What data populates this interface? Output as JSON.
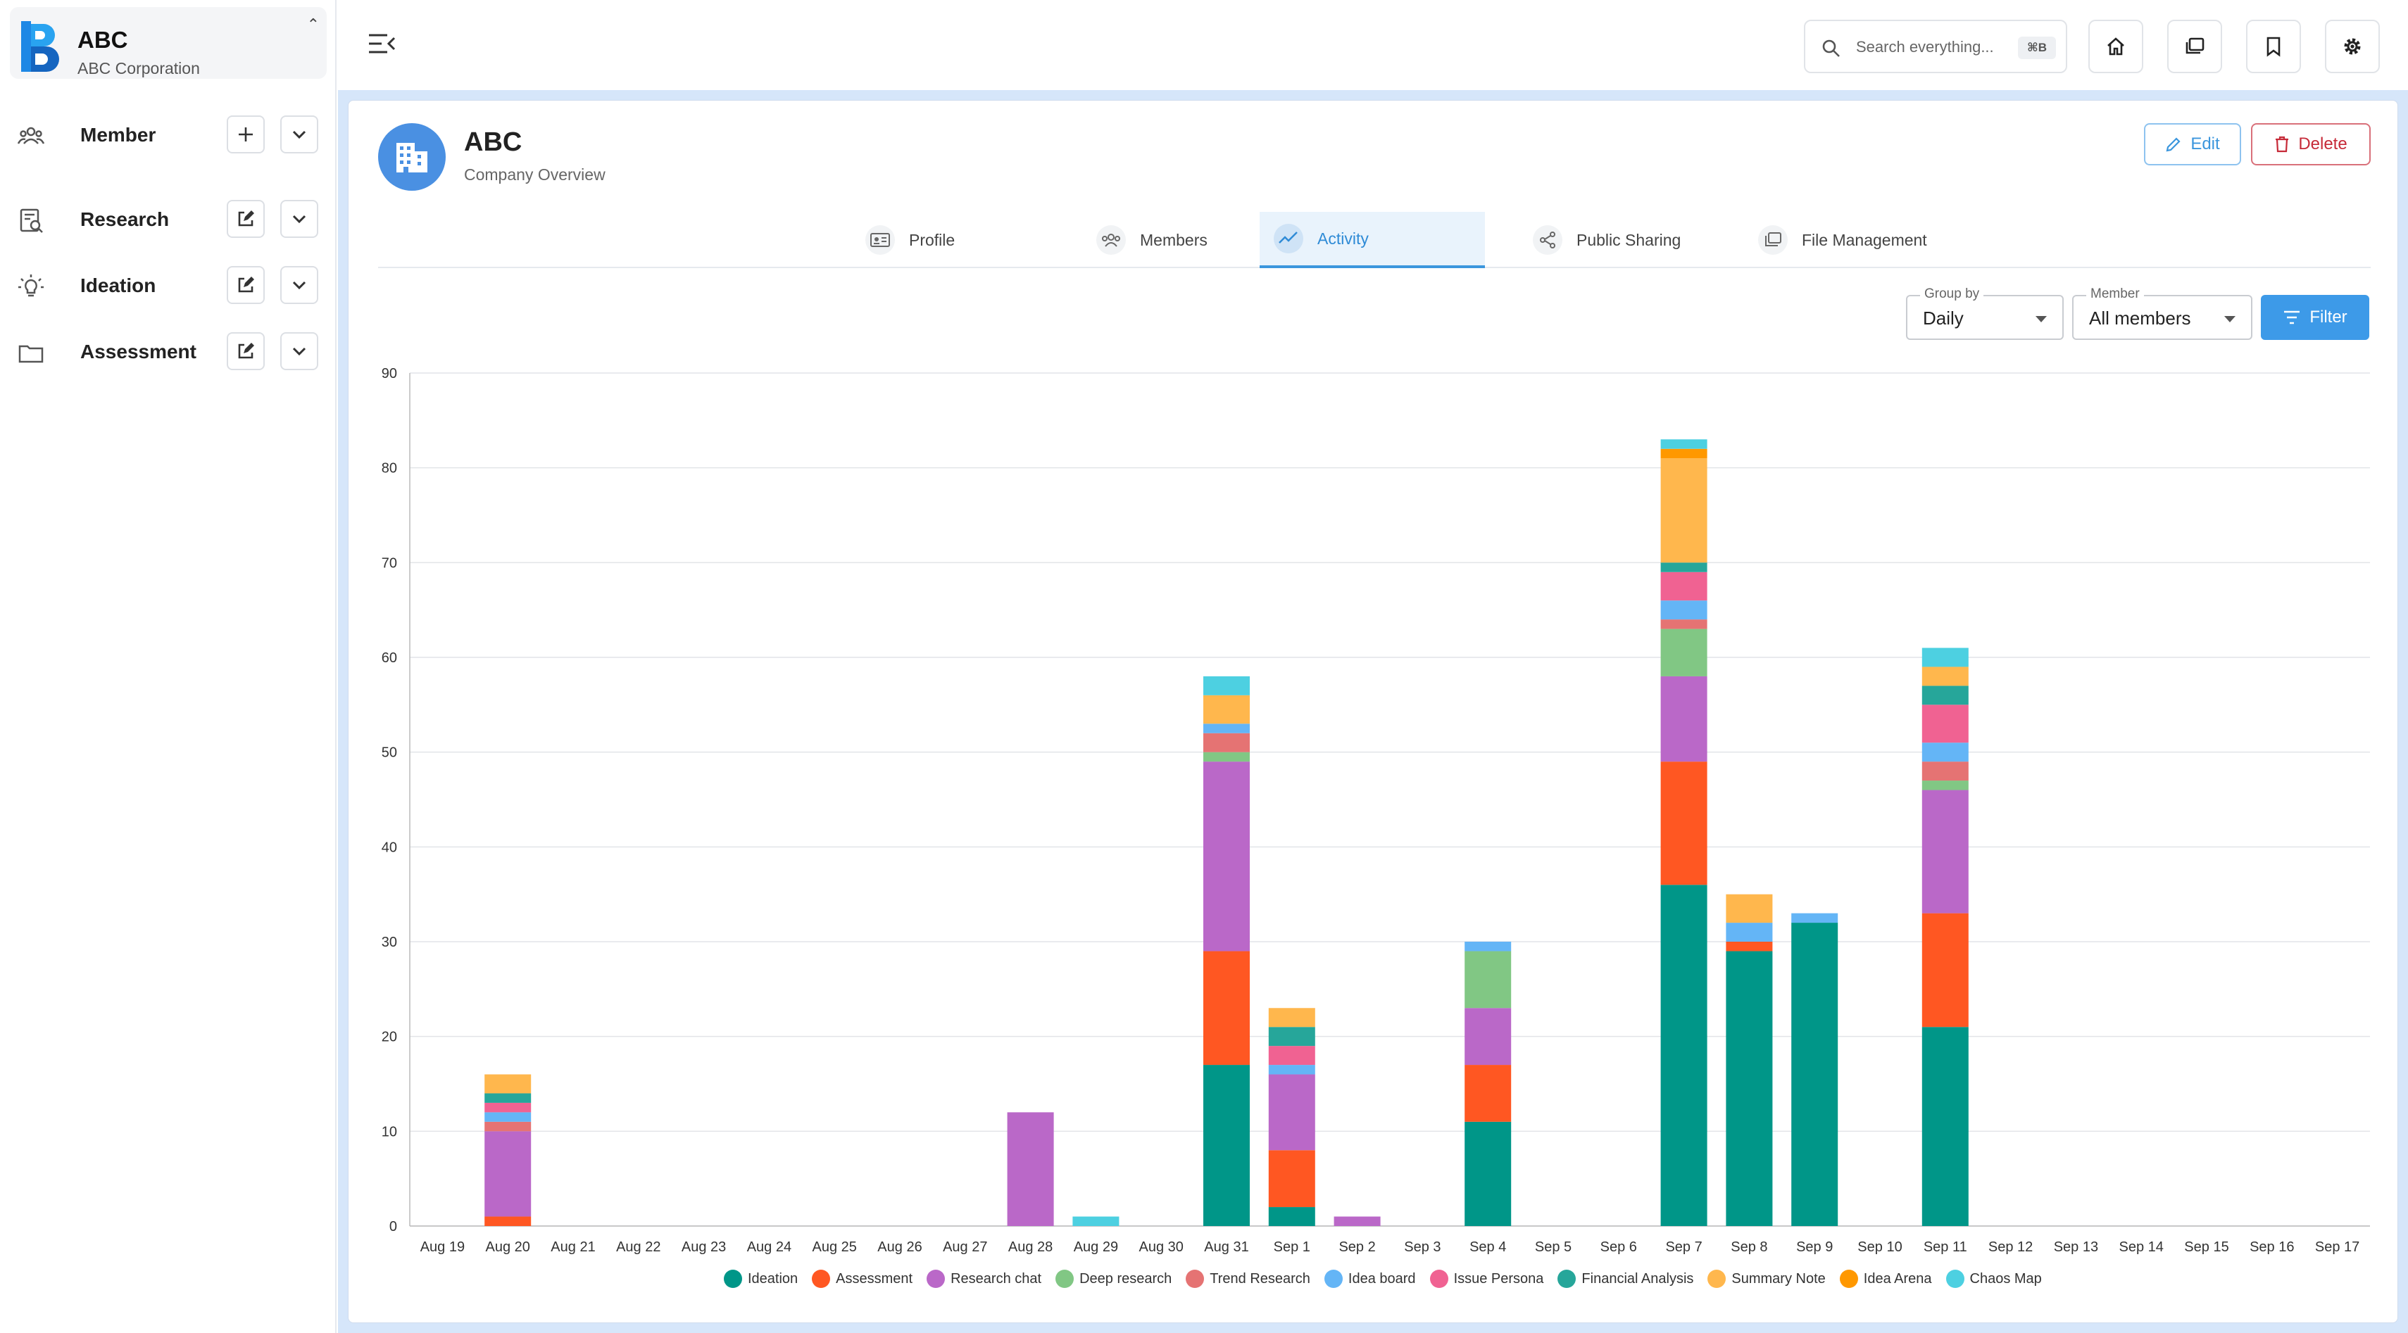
{
  "org": {
    "name": "ABC",
    "subtitle": "ABC Corporation"
  },
  "sidebar": {
    "items": [
      {
        "label": "Member",
        "icon": "people-icon"
      },
      {
        "label": "Research",
        "icon": "research-icon"
      },
      {
        "label": "Ideation",
        "icon": "lightbulb-icon"
      },
      {
        "label": "Assessment",
        "icon": "folder-icon"
      }
    ]
  },
  "search": {
    "placeholder": "Search everything...",
    "shortcut": "⌘B"
  },
  "company": {
    "name": "ABC",
    "subtitle": "Company Overview"
  },
  "actions": {
    "edit": "Edit",
    "delete": "Delete"
  },
  "tabs": [
    {
      "label": "Profile"
    },
    {
      "label": "Members"
    },
    {
      "label": "Activity",
      "active": true
    },
    {
      "label": "Public Sharing"
    },
    {
      "label": "File Management"
    }
  ],
  "filters": {
    "group_by": {
      "label": "Group by",
      "value": "Daily"
    },
    "member": {
      "label": "Member",
      "value": "All members"
    },
    "button": "Filter"
  },
  "colors": {
    "Ideation": "#009688",
    "Assessment": "#ff5722",
    "Research chat": "#ba68c8",
    "Deep research": "#81c784",
    "Trend Research": "#e57373",
    "Idea board": "#64b5f6",
    "Issue Persona": "#f06292",
    "Financial Analysis": "#26a69a",
    "Summary Note": "#ffb74d",
    "Idea Arena": "#ff9800",
    "Chaos Map": "#4dd0e1"
  },
  "chart_data": {
    "type": "bar",
    "stacked": true,
    "ylim": [
      0,
      90
    ],
    "yticks": [
      0,
      10,
      20,
      30,
      40,
      50,
      60,
      70,
      80,
      90
    ],
    "grid": true,
    "legend": "bottom",
    "categories": [
      "Aug 19",
      "Aug 20",
      "Aug 21",
      "Aug 22",
      "Aug 23",
      "Aug 24",
      "Aug 25",
      "Aug 26",
      "Aug 27",
      "Aug 28",
      "Aug 29",
      "Aug 30",
      "Aug 31",
      "Sep 1",
      "Sep 2",
      "Sep 3",
      "Sep 4",
      "Sep 5",
      "Sep 6",
      "Sep 7",
      "Sep 8",
      "Sep 9",
      "Sep 10",
      "Sep 11",
      "Sep 12",
      "Sep 13",
      "Sep 14",
      "Sep 15",
      "Sep 16",
      "Sep 17"
    ],
    "series": [
      {
        "name": "Ideation",
        "values": [
          0,
          0,
          0,
          0,
          0,
          0,
          0,
          0,
          0,
          0,
          0,
          0,
          17,
          2,
          0,
          0,
          11,
          0,
          0,
          36,
          29,
          32,
          0,
          21,
          0,
          0,
          0,
          0,
          0,
          0
        ]
      },
      {
        "name": "Assessment",
        "values": [
          0,
          1,
          0,
          0,
          0,
          0,
          0,
          0,
          0,
          0,
          0,
          0,
          12,
          6,
          0,
          0,
          6,
          0,
          0,
          13,
          1,
          0,
          0,
          12,
          0,
          0,
          0,
          0,
          0,
          0
        ]
      },
      {
        "name": "Research chat",
        "values": [
          0,
          9,
          0,
          0,
          0,
          0,
          0,
          0,
          0,
          12,
          0,
          0,
          20,
          8,
          1,
          0,
          6,
          0,
          0,
          9,
          0,
          0,
          0,
          13,
          0,
          0,
          0,
          0,
          0,
          0
        ]
      },
      {
        "name": "Deep research",
        "values": [
          0,
          0,
          0,
          0,
          0,
          0,
          0,
          0,
          0,
          0,
          0,
          0,
          1,
          0,
          0,
          0,
          6,
          0,
          0,
          5,
          0,
          0,
          0,
          1,
          0,
          0,
          0,
          0,
          0,
          0
        ]
      },
      {
        "name": "Trend Research",
        "values": [
          0,
          1,
          0,
          0,
          0,
          0,
          0,
          0,
          0,
          0,
          0,
          0,
          2,
          0,
          0,
          0,
          0,
          0,
          0,
          1,
          0,
          0,
          0,
          2,
          0,
          0,
          0,
          0,
          0,
          0
        ]
      },
      {
        "name": "Idea board",
        "values": [
          0,
          1,
          0,
          0,
          0,
          0,
          0,
          0,
          0,
          0,
          0,
          0,
          1,
          1,
          0,
          0,
          1,
          0,
          0,
          2,
          2,
          1,
          0,
          2,
          0,
          0,
          0,
          0,
          0,
          0
        ]
      },
      {
        "name": "Issue Persona",
        "values": [
          0,
          1,
          0,
          0,
          0,
          0,
          0,
          0,
          0,
          0,
          0,
          0,
          0,
          2,
          0,
          0,
          0,
          0,
          0,
          3,
          0,
          0,
          0,
          4,
          0,
          0,
          0,
          0,
          0,
          0
        ]
      },
      {
        "name": "Financial Analysis",
        "values": [
          0,
          1,
          0,
          0,
          0,
          0,
          0,
          0,
          0,
          0,
          0,
          0,
          0,
          2,
          0,
          0,
          0,
          0,
          0,
          1,
          0,
          0,
          0,
          2,
          0,
          0,
          0,
          0,
          0,
          0
        ]
      },
      {
        "name": "Summary Note",
        "values": [
          0,
          2,
          0,
          0,
          0,
          0,
          0,
          0,
          0,
          0,
          0,
          0,
          3,
          2,
          0,
          0,
          0,
          0,
          0,
          11,
          3,
          0,
          0,
          2,
          0,
          0,
          0,
          0,
          0,
          0
        ]
      },
      {
        "name": "Idea Arena",
        "values": [
          0,
          0,
          0,
          0,
          0,
          0,
          0,
          0,
          0,
          0,
          0,
          0,
          0,
          0,
          0,
          0,
          0,
          0,
          0,
          1,
          0,
          0,
          0,
          0,
          0,
          0,
          0,
          0,
          0,
          0
        ]
      },
      {
        "name": "Chaos Map",
        "values": [
          0,
          0,
          0,
          0,
          0,
          0,
          0,
          0,
          0,
          0,
          1,
          0,
          2,
          0,
          0,
          0,
          0,
          0,
          0,
          1,
          0,
          0,
          0,
          2,
          0,
          0,
          0,
          0,
          0,
          0
        ]
      }
    ]
  }
}
